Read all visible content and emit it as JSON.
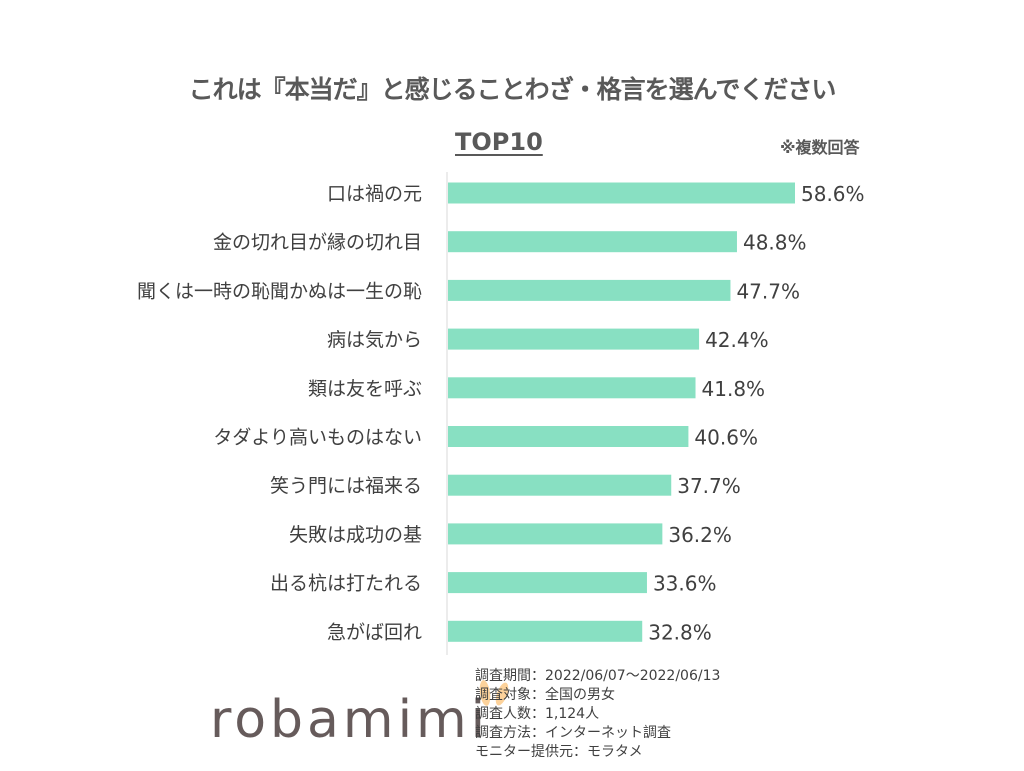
{
  "chart_data": {
    "type": "bar",
    "orientation": "horizontal",
    "title": "これは『本当だ』と感じることわざ・格言を選んでください",
    "subtitle": "TOP10",
    "note": "※複数回答",
    "categories": [
      "口は禍の元",
      "金の切れ目が縁の切れ目",
      "聞くは一時の恥聞かぬは一生の恥",
      "病は気から",
      "類は友を呼ぶ",
      "タダより高いものはない",
      "笑う門には福来る",
      "失敗は成功の基",
      "出る杭は打たれる",
      "急がば回れ"
    ],
    "values": [
      58.6,
      48.8,
      47.7,
      42.4,
      41.8,
      40.6,
      37.7,
      36.2,
      33.6,
      32.8
    ],
    "value_labels": [
      "58.6%",
      "48.8%",
      "47.7%",
      "42.4%",
      "41.8%",
      "40.6%",
      "37.7%",
      "36.2%",
      "33.6%",
      "32.8%"
    ],
    "unit": "%",
    "xlim": [
      0,
      58.6
    ],
    "grid": false,
    "bar_color": "#88e0c2"
  },
  "footer": {
    "logo": "robamimi",
    "survey_info": [
      "調査期間：2022/06/07～2022/06/13",
      "調査対象：全国の男女",
      "調査人数：1,124人",
      "調査方法：インターネット調査",
      "モニター提供元：モラタメ"
    ]
  }
}
